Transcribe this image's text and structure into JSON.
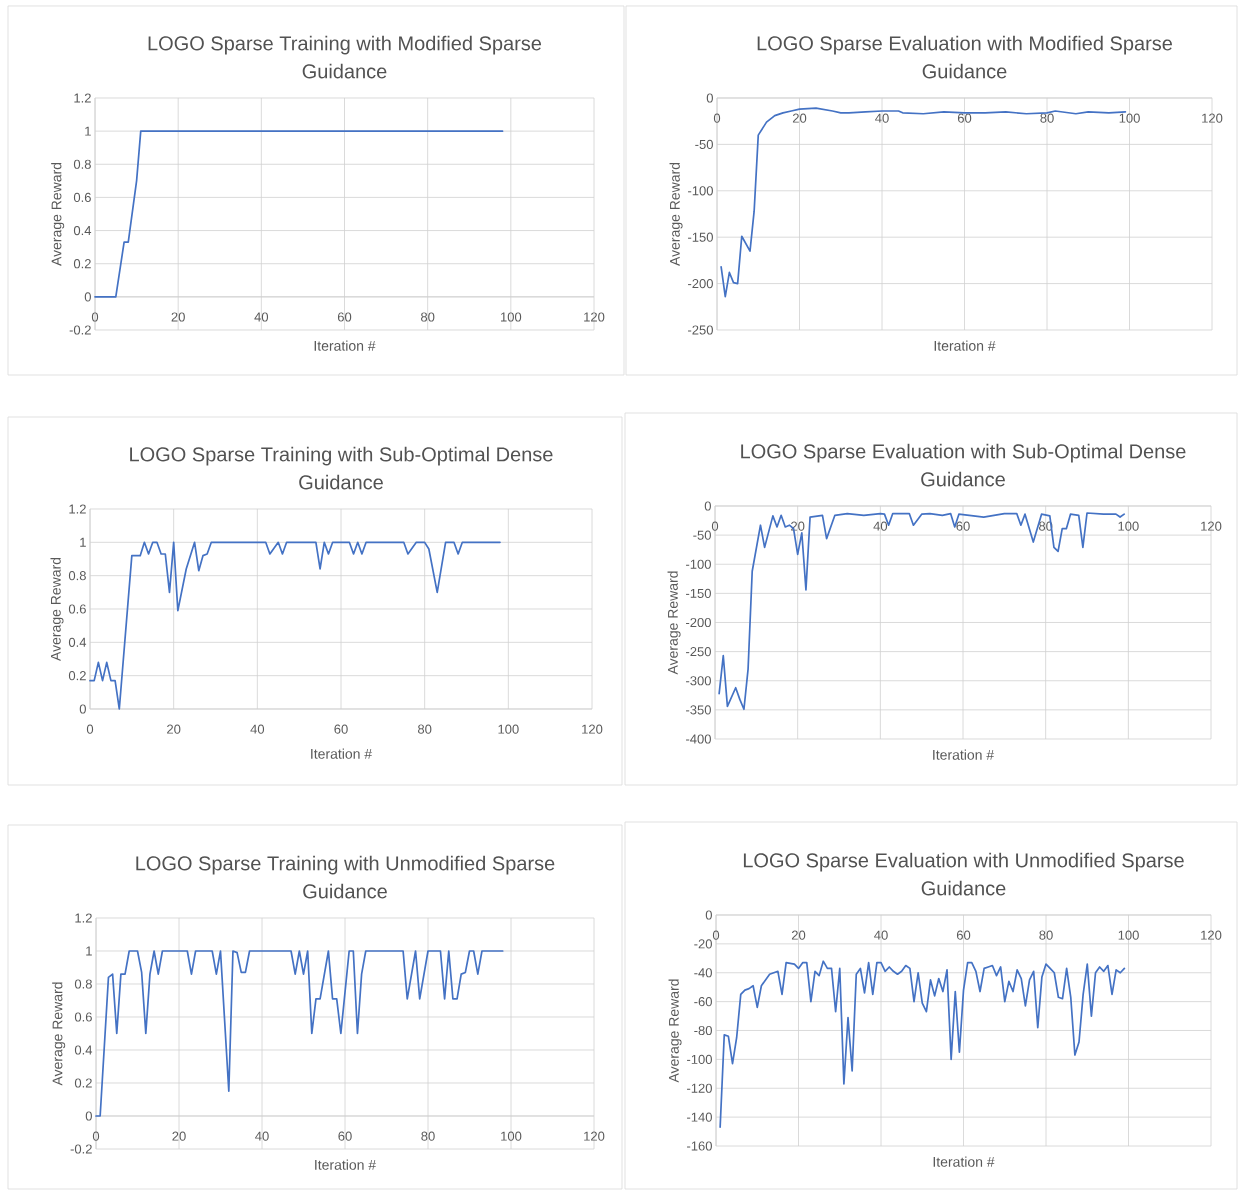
{
  "chart_data": [
    {
      "type": "line",
      "title": "LOGO Sparse Training with Modified Sparse Guidance",
      "xlabel": "Iteration #",
      "ylabel": "Average Reward",
      "color": "#4472c4",
      "grid": true,
      "x": [
        0,
        5,
        7,
        8,
        10,
        11,
        20,
        40,
        60,
        80,
        98
      ],
      "values": [
        0,
        0,
        0.33,
        0.33,
        0.7,
        1,
        1,
        1,
        1,
        1,
        1
      ],
      "xlim": [
        0,
        120
      ],
      "ylim": [
        -0.2,
        1.2
      ],
      "xticks": [
        0,
        20,
        40,
        60,
        80,
        100,
        120
      ],
      "yticks": [
        -0.2,
        0,
        0.2,
        0.4,
        0.6,
        0.8,
        1,
        1.2
      ]
    },
    {
      "type": "line",
      "title": "LOGO Sparse Evaluation with Modified Sparse Guidance",
      "xlabel": "Iteration #",
      "ylabel": "Average Reward",
      "color": "#4472c4",
      "grid": true,
      "x": [
        1,
        2,
        3,
        4,
        5,
        6,
        8,
        9,
        10,
        12,
        14,
        16,
        18,
        20,
        24,
        28,
        30,
        32,
        36,
        40,
        44,
        45,
        50,
        55,
        60,
        65,
        70,
        75,
        80,
        82,
        87,
        90,
        95,
        99
      ],
      "values": [
        -182,
        -214,
        -188,
        -199,
        -200,
        -149,
        -165,
        -122,
        -40,
        -26,
        -19,
        -16,
        -14,
        -12,
        -11,
        -14,
        -16,
        -16,
        -15,
        -14,
        -14,
        -16,
        -17,
        -15,
        -16,
        -16,
        -15,
        -17,
        -16,
        -14,
        -17,
        -15,
        -16,
        -15
      ],
      "xlim": [
        0,
        120
      ],
      "ylim": [
        -250,
        0
      ],
      "xticks": [
        0,
        20,
        40,
        60,
        80,
        100,
        120
      ],
      "yticks": [
        -250,
        -200,
        -150,
        -100,
        -50,
        0
      ]
    },
    {
      "type": "line",
      "title": "LOGO Sparse Training with Sub-Optimal Dense Guidance",
      "xlabel": "Iteration #",
      "ylabel": "Average Reward",
      "color": "#4472c4",
      "grid": true,
      "x": [
        0,
        1,
        2,
        3,
        4,
        5,
        6,
        7,
        10,
        12,
        13,
        14,
        15,
        16,
        17,
        18,
        19,
        20,
        21,
        23,
        25,
        26,
        27,
        28,
        29,
        42,
        43,
        45,
        46,
        47,
        54,
        55,
        56,
        57,
        58,
        62,
        63,
        64,
        65,
        66,
        75,
        76,
        78,
        80,
        81,
        83,
        85,
        87,
        88,
        89,
        98
      ],
      "values": [
        0.17,
        0.17,
        0.28,
        0.17,
        0.28,
        0.17,
        0.17,
        0,
        0.92,
        0.92,
        1,
        0.93,
        1,
        1,
        0.93,
        0.93,
        0.7,
        1,
        0.59,
        0.84,
        1,
        0.83,
        0.92,
        0.93,
        1,
        1,
        0.93,
        1,
        0.93,
        1,
        1,
        0.84,
        1,
        0.93,
        1,
        1,
        0.93,
        1,
        0.93,
        1,
        1,
        0.93,
        1,
        1,
        0.96,
        0.7,
        1,
        1,
        0.93,
        1,
        1
      ],
      "xlim": [
        0,
        120
      ],
      "ylim": [
        0,
        1.2
      ],
      "xticks": [
        0,
        20,
        40,
        60,
        80,
        100,
        120
      ],
      "yticks": [
        0,
        0.2,
        0.4,
        0.6,
        0.8,
        1,
        1.2
      ]
    },
    {
      "type": "line",
      "title": "LOGO Sparse Evaluation with Sub-Optimal Dense Guidance",
      "xlabel": "Iteration #",
      "ylabel": "Average Reward",
      "color": "#4472c4",
      "grid": true,
      "x": [
        1,
        2,
        3,
        5,
        6,
        7,
        8,
        9,
        11,
        12,
        14,
        15,
        16,
        17,
        18,
        19,
        20,
        21,
        22,
        23,
        26,
        27,
        29,
        32,
        36,
        40,
        41,
        42,
        43,
        47,
        48,
        50,
        52,
        55,
        57,
        58,
        59,
        65,
        70,
        73,
        74,
        75,
        77,
        79,
        81,
        82,
        83,
        84,
        85,
        86,
        88,
        89,
        90,
        94,
        97,
        98,
        99
      ],
      "values": [
        -322,
        -257,
        -344,
        -312,
        -332,
        -349,
        -280,
        -112,
        -33,
        -71,
        -17,
        -36,
        -16,
        -36,
        -33,
        -39,
        -83,
        -46,
        -144,
        -19,
        -16,
        -56,
        -16,
        -13,
        -16,
        -13,
        -14,
        -33,
        -13,
        -13,
        -33,
        -14,
        -13,
        -16,
        -13,
        -36,
        -14,
        -19,
        -13,
        -13,
        -33,
        -14,
        -62,
        -14,
        -17,
        -71,
        -78,
        -39,
        -39,
        -14,
        -16,
        -71,
        -12,
        -14,
        -14,
        -19,
        -14
      ],
      "xlim": [
        0,
        120
      ],
      "ylim": [
        -400,
        0
      ],
      "xticks": [
        0,
        20,
        40,
        60,
        80,
        100,
        120
      ],
      "yticks": [
        -400,
        -350,
        -300,
        -250,
        -200,
        -150,
        -100,
        -50,
        0
      ]
    },
    {
      "type": "line",
      "title": "LOGO Sparse Training with Unmodified Sparse Guidance",
      "xlabel": "Iteration #",
      "ylabel": "Average Reward",
      "color": "#4472c4",
      "grid": true,
      "x": [
        0,
        1,
        3,
        4,
        5,
        6,
        7,
        8,
        10,
        11,
        12,
        13,
        14,
        15,
        16,
        22,
        23,
        24,
        28,
        29,
        30,
        32,
        33,
        34,
        35,
        36,
        37,
        47,
        48,
        49,
        50,
        51,
        52,
        53,
        54,
        56,
        57,
        58,
        59,
        61,
        62,
        63,
        64,
        65,
        74,
        75,
        77,
        78,
        80,
        83,
        84,
        85,
        86,
        87,
        88,
        89,
        90,
        91,
        92,
        93,
        98
      ],
      "values": [
        0,
        0,
        0.84,
        0.86,
        0.5,
        0.86,
        0.86,
        1,
        1,
        0.87,
        0.5,
        0.86,
        1,
        0.86,
        1,
        1,
        0.86,
        1,
        1,
        0.86,
        1,
        0.15,
        1,
        0.99,
        0.87,
        0.87,
        1,
        1,
        0.86,
        1,
        0.86,
        1,
        0.5,
        0.71,
        0.71,
        1,
        0.71,
        0.71,
        0.5,
        1,
        1,
        0.5,
        0.86,
        1,
        1,
        0.71,
        1,
        0.71,
        1,
        1,
        0.71,
        1,
        0.71,
        0.71,
        0.86,
        0.87,
        1,
        1,
        0.86,
        1,
        1
      ],
      "xlim": [
        0,
        120
      ],
      "ylim": [
        -0.2,
        1.2
      ],
      "xticks": [
        0,
        20,
        40,
        60,
        80,
        100,
        120
      ],
      "yticks": [
        -0.2,
        0,
        0.2,
        0.4,
        0.6,
        0.8,
        1,
        1.2
      ]
    },
    {
      "type": "line",
      "title": "LOGO Sparse Evaluation with Unmodified Sparse Guidance",
      "xlabel": "Iteration #",
      "ylabel": "Average Reward",
      "color": "#4472c4",
      "grid": true,
      "x": [
        1,
        2,
        3,
        4,
        5,
        6,
        7,
        8,
        9,
        10,
        11,
        13,
        15,
        16,
        17,
        19,
        20,
        21,
        22,
        23,
        24,
        25,
        26,
        27,
        28,
        29,
        30,
        31,
        32,
        33,
        34,
        35,
        36,
        37,
        38,
        39,
        40,
        41,
        42,
        43,
        44,
        45,
        46,
        47,
        48,
        49,
        50,
        51,
        52,
        53,
        54,
        55,
        56,
        57,
        58,
        59,
        60,
        61,
        62,
        63,
        64,
        65,
        66,
        67,
        68,
        69,
        70,
        71,
        72,
        73,
        74,
        75,
        76,
        77,
        78,
        79,
        80,
        81,
        82,
        83,
        84,
        85,
        86,
        87,
        88,
        89,
        90,
        91,
        92,
        93,
        94,
        95,
        96,
        97,
        98,
        99
      ],
      "values": [
        -147,
        -83,
        -84,
        -103,
        -85,
        -55,
        -52,
        -51,
        -49,
        -64,
        -49,
        -41,
        -39,
        -55,
        -33,
        -34,
        -37,
        -33,
        -33,
        -60,
        -39,
        -42,
        -32,
        -37,
        -37,
        -67,
        -37,
        -117,
        -71,
        -108,
        -41,
        -37,
        -54,
        -33,
        -55,
        -33,
        -33,
        -39,
        -36,
        -39,
        -41,
        -39,
        -35,
        -37,
        -60,
        -40,
        -61,
        -67,
        -45,
        -56,
        -44,
        -53,
        -38,
        -100,
        -53,
        -95,
        -52,
        -33,
        -33,
        -39,
        -53,
        -37,
        -36,
        -35,
        -42,
        -36,
        -60,
        -46,
        -53,
        -38,
        -44,
        -63,
        -45,
        -39,
        -78,
        -43,
        -34,
        -37,
        -40,
        -57,
        -58,
        -37,
        -57,
        -97,
        -88,
        -55,
        -34,
        -70,
        -40,
        -36,
        -39,
        -35,
        -55,
        -38,
        -40,
        -37
      ],
      "xlim": [
        0,
        120
      ],
      "ylim": [
        -160,
        0
      ],
      "xticks": [
        0,
        20,
        40,
        60,
        80,
        100,
        120
      ],
      "yticks": [
        -160,
        -140,
        -120,
        -100,
        -80,
        -60,
        -40,
        -20,
        0
      ]
    }
  ]
}
